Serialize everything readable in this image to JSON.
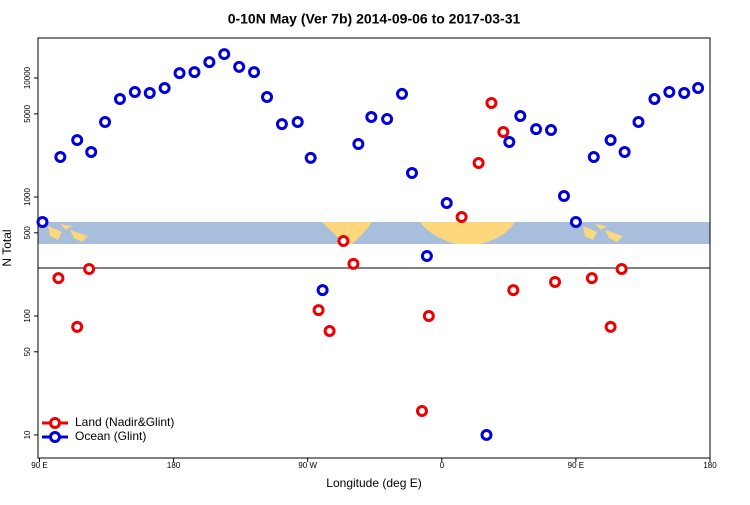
{
  "chart_data": {
    "type": "scatter",
    "title": "0-10N May (Ver 7b)   2014-09-06 to 2017-03-31",
    "xlabel": "Longitude (deg E)",
    "ylabel": "N Total",
    "xlim": [
      89,
      540
    ],
    "ylim": [
      6.4,
      21700
    ],
    "ylog": true,
    "xticks": [
      {
        "value": 90,
        "label": "90 E"
      },
      180,
      {
        "value": 270,
        "label": "90 W"
      },
      {
        "value": 360,
        "label": "0"
      },
      {
        "value": 450,
        "label": "90 E"
      },
      {
        "value": 540,
        "label": "180"
      }
    ],
    "yticks": [
      10,
      50,
      100,
      500,
      1000,
      5000,
      10000
    ],
    "hline": 253,
    "legend": "bottom-left",
    "series": [
      {
        "name": "Land (Nadir&Glint)",
        "color": "#ee0000",
        "x": [
          102.7,
          115.3,
          123.3,
          277.3,
          284.7,
          294,
          300.7,
          346.7,
          351.3,
          373.3,
          384.7,
          393.3,
          401.3,
          408,
          436,
          460.7,
          473.3,
          480.7
        ],
        "values": [
          208,
          80.9,
          248,
          112,
          74.8,
          427,
          274,
          15.9,
          100,
          679,
          1930,
          6170,
          3520,
          165,
          193,
          208,
          80.9,
          248
        ]
      },
      {
        "name": "Ocean (Glint)",
        "color": "#0000dd",
        "x": [
          92,
          104,
          115.3,
          124.7,
          134,
          144,
          154,
          164,
          174,
          184,
          194,
          204,
          214,
          224,
          234,
          242.7,
          252.7,
          263.3,
          272,
          280,
          304,
          312.7,
          323.3,
          333.3,
          340,
          350,
          363.3,
          390,
          405.3,
          412.7,
          423.3,
          433.3,
          442,
          450,
          462,
          473.3,
          482.7,
          492,
          502.7,
          512.7,
          522.7,
          532
        ],
        "values": [
          617,
          2170,
          3010,
          2390,
          4270,
          6670,
          7630,
          7480,
          8240,
          11000,
          11200,
          13600,
          15900,
          12400,
          11200,
          6920,
          4100,
          4270,
          2130,
          165,
          2790,
          4700,
          4520,
          7350,
          1590,
          319,
          891,
          10,
          2900,
          4800,
          3720,
          3660,
          1020,
          617,
          2170,
          3010,
          2390,
          4270,
          6670,
          7630,
          7480,
          8240
        ]
      }
    ]
  }
}
